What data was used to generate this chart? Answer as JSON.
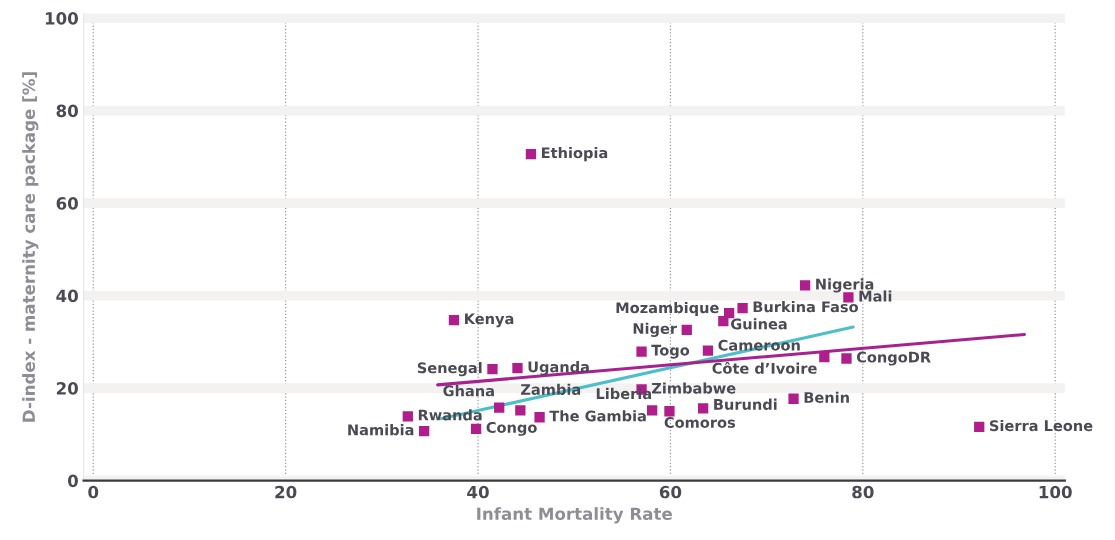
{
  "chart_data": {
    "type": "scatter",
    "xlabel": "Infant Mortality Rate",
    "ylabel": "D-index - maternity care package [%]",
    "xlim": [
      -1,
      101
    ],
    "ylim": [
      0,
      101
    ],
    "xticks": [
      0,
      20,
      40,
      60,
      80,
      100
    ],
    "yticks": [
      0,
      20,
      40,
      60,
      80,
      100
    ],
    "grid": true,
    "marker": "square",
    "series": [
      {
        "color": "#b01e8c",
        "x": [
          45.5,
          37.5,
          41.5,
          44.1,
          42.2,
          44.4,
          46.4,
          32.7,
          34.4,
          39.8,
          57.0,
          61.7,
          66.1,
          65.5,
          67.5,
          74.0,
          78.5,
          63.9,
          76.0,
          78.3,
          57.0,
          58.1,
          59.9,
          63.4,
          72.8,
          92.1
        ],
        "values": [
          70.6,
          34.7,
          24.1,
          24.3,
          15.8,
          15.2,
          13.7,
          13.9,
          10.7,
          11.2,
          27.9,
          32.6,
          36.2,
          34.5,
          37.3,
          42.2,
          39.6,
          28.1,
          26.7,
          26.4,
          19.7,
          15.2,
          15.0,
          15.6,
          17.7,
          11.6
        ]
      },
      {
        "type": "line",
        "color": "#4dbfc8",
        "marker": "none",
        "x": [
          36.2,
          79.0
        ],
        "values": [
          13.4,
          33.2
        ]
      },
      {
        "type": "line",
        "color": "#a8228f",
        "marker": "none",
        "x": [
          35.8,
          96.8
        ],
        "values": [
          20.7,
          31.6
        ]
      }
    ],
    "annotations": [
      {
        "text": "Ethiopia",
        "x": 45.5,
        "y": 70.6
      },
      {
        "text": "Kenya",
        "x": 37.5,
        "y": 34.7
      },
      {
        "text": "Senegal",
        "x": 41.5,
        "y": 24.1
      },
      {
        "text": "Uganda",
        "x": 44.1,
        "y": 24.3
      },
      {
        "text": "Ghana",
        "x": 42.2,
        "y": 15.8
      },
      {
        "text": "Zambia",
        "x": 44.4,
        "y": 15.2
      },
      {
        "text": "The Gambia",
        "x": 46.4,
        "y": 13.7
      },
      {
        "text": "Rwanda",
        "x": 32.7,
        "y": 13.9
      },
      {
        "text": "Namibia",
        "x": 34.4,
        "y": 10.7
      },
      {
        "text": "Congo",
        "x": 39.8,
        "y": 11.2
      },
      {
        "text": "Togo",
        "x": 57.0,
        "y": 27.9
      },
      {
        "text": "Niger",
        "x": 61.7,
        "y": 32.6
      },
      {
        "text": "Mozambique",
        "x": 66.1,
        "y": 36.2
      },
      {
        "text": "Guinea",
        "x": 65.5,
        "y": 34.5
      },
      {
        "text": "Burkina Faso",
        "x": 67.5,
        "y": 37.3
      },
      {
        "text": "Nigeria",
        "x": 74.0,
        "y": 42.2
      },
      {
        "text": "Mali",
        "x": 78.5,
        "y": 39.6
      },
      {
        "text": "Cameroon",
        "x": 63.9,
        "y": 28.1
      },
      {
        "text": "Côte d’Ivoire",
        "x": 76.0,
        "y": 26.7
      },
      {
        "text": "CongoDR",
        "x": 78.3,
        "y": 26.4
      },
      {
        "text": "Zimbabwe",
        "x": 57.0,
        "y": 19.7
      },
      {
        "text": "Liberia",
        "x": 58.1,
        "y": 15.2
      },
      {
        "text": "Comoros",
        "x": 59.9,
        "y": 15.0
      },
      {
        "text": "Burundi",
        "x": 63.4,
        "y": 15.6
      },
      {
        "text": "Benin",
        "x": 72.8,
        "y": 17.7
      },
      {
        "text": "Sierra Leone",
        "x": 92.1,
        "y": 11.6
      }
    ]
  }
}
